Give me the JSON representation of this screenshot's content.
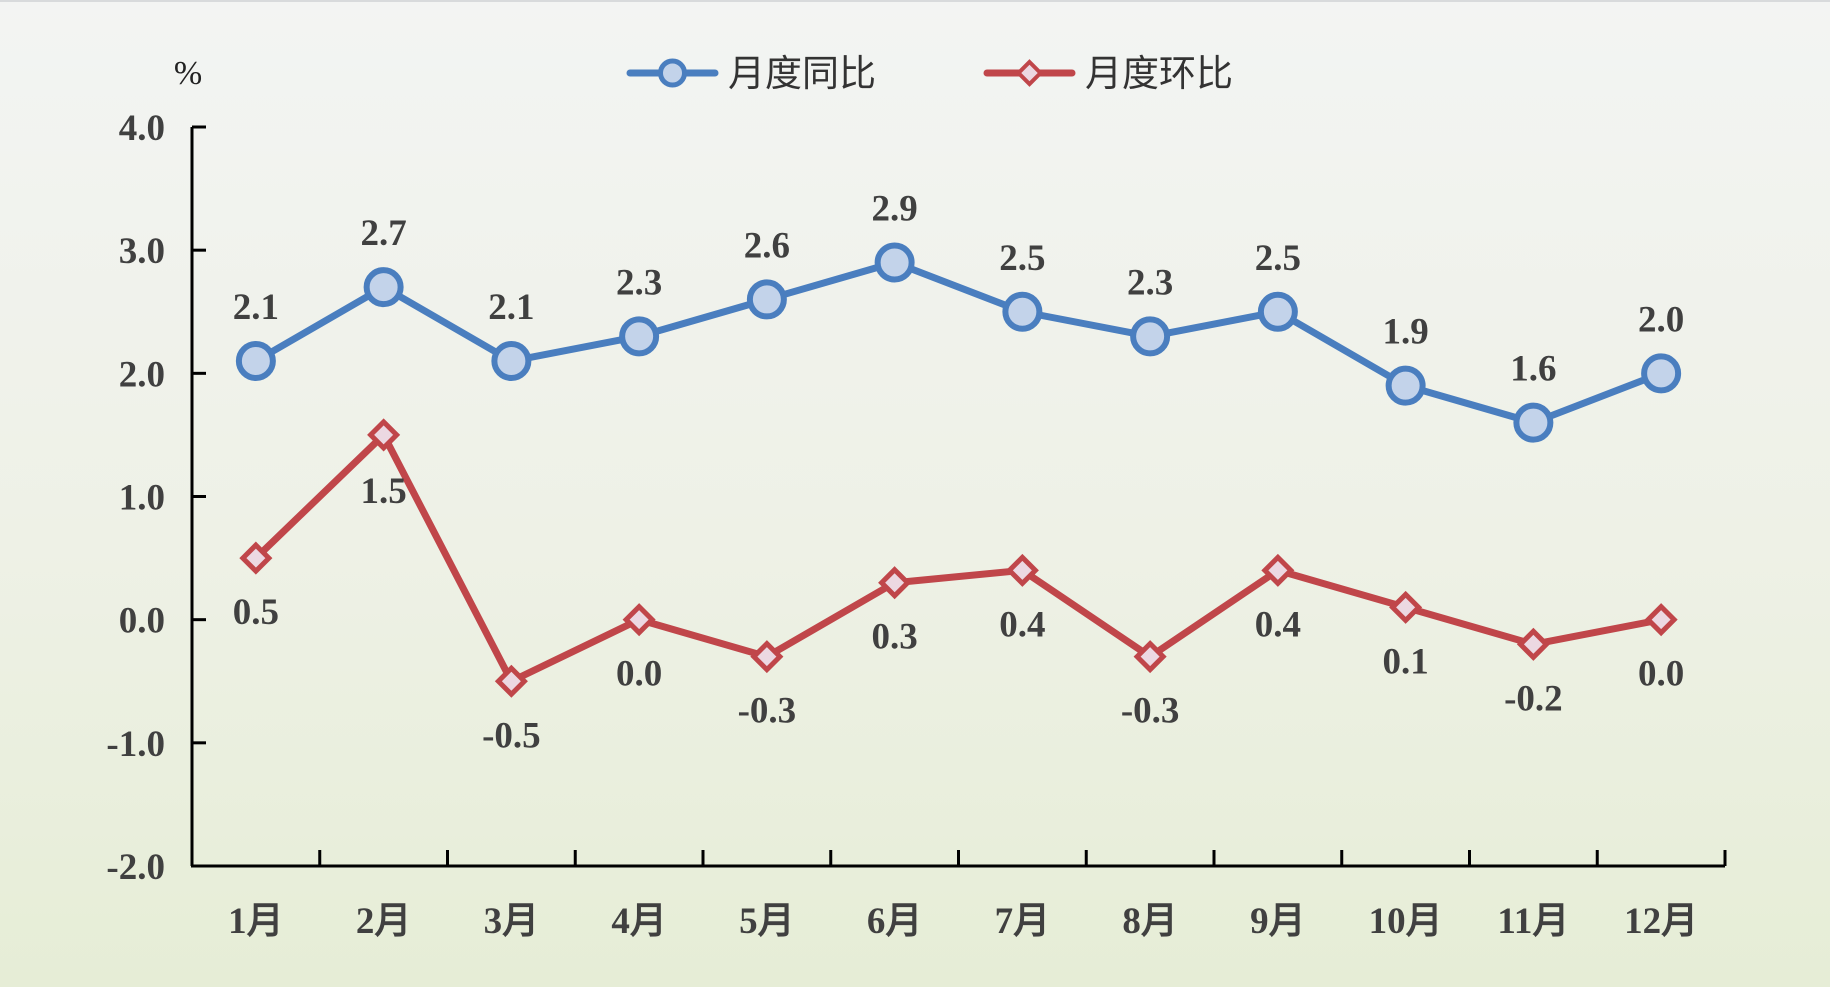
{
  "chart_data": {
    "type": "line",
    "unit_label": "%",
    "categories": [
      "1月",
      "2月",
      "3月",
      "4月",
      "5月",
      "6月",
      "7月",
      "8月",
      "9月",
      "10月",
      "11月",
      "12月"
    ],
    "ylim": [
      -2.0,
      4.0
    ],
    "yticks": [
      "4.0",
      "3.0",
      "2.0",
      "1.0",
      "0.0",
      "-1.0",
      "-2.0"
    ],
    "ytick_values": [
      4,
      3,
      2,
      1,
      0,
      -1,
      -2
    ],
    "legend_position": "top-center",
    "grid": false,
    "series": [
      {
        "name": "月度同比",
        "color": "#4a7ebf",
        "marker": "circle",
        "values": [
          2.1,
          2.7,
          2.1,
          2.3,
          2.6,
          2.9,
          2.5,
          2.3,
          2.5,
          1.9,
          1.6,
          2.0
        ],
        "labels": [
          "2.1",
          "2.7",
          "2.1",
          "2.3",
          "2.6",
          "2.9",
          "2.5",
          "2.3",
          "2.5",
          "1.9",
          "1.6",
          "2.0"
        ]
      },
      {
        "name": "月度环比",
        "color": "#c0464a",
        "marker": "diamond",
        "values": [
          0.5,
          1.5,
          -0.5,
          0.0,
          -0.3,
          0.3,
          0.4,
          -0.3,
          0.4,
          0.1,
          -0.2,
          0.0
        ],
        "labels": [
          "0.5",
          "1.5",
          "-0.5",
          "0.0",
          "-0.3",
          "0.3",
          "0.4",
          "-0.3",
          "0.4",
          "0.1",
          "-0.2",
          "0.0"
        ]
      }
    ]
  }
}
